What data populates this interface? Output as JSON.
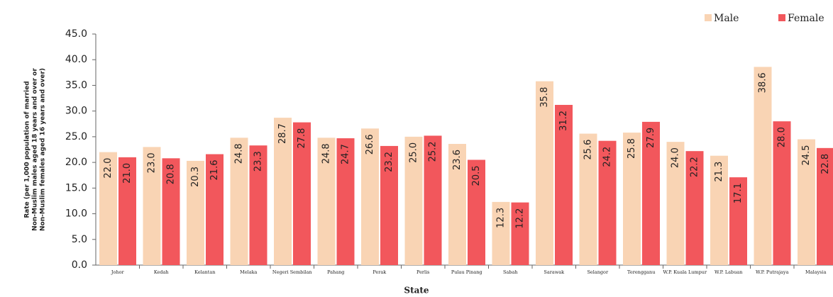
{
  "chart_data": {
    "type": "bar",
    "ylabel": [
      "Rate (per 1,000 population of married",
      "Non-Muslim  males aged 18 years and over or",
      "Non-Muslim  females aged 16 years and over)"
    ],
    "xlabel": "State",
    "categories": [
      "Johor",
      "Kedah",
      "Kelantan",
      "Melaka",
      "Negeri Sembilan",
      "Pahang",
      "Perak",
      "Perlis",
      "Pulau Pinang",
      "Sabah",
      "Sarawak",
      "Selangor",
      "Terengganu",
      "W.P. Kuala Lumpur",
      "W.P. Labuan",
      "W.P. Putrajaya",
      "Malaysia"
    ],
    "series": [
      {
        "name": "Male",
        "color": "#f9d4b4",
        "values": [
          22.0,
          23.0,
          20.3,
          24.8,
          28.7,
          24.8,
          26.6,
          25.0,
          23.6,
          12.3,
          35.8,
          25.6,
          25.8,
          24.0,
          21.3,
          38.6,
          24.5
        ],
        "value_labels": [
          "22.0",
          "23.0",
          "20.3",
          "24.8",
          "28.7",
          "24.8",
          "26.6",
          "25.0",
          "23.6",
          "12.3",
          "35.8",
          "25.6",
          "25.8",
          "24.0",
          "21.3",
          "38.6",
          "24.5"
        ]
      },
      {
        "name": "Female",
        "color": "#f2575c",
        "values": [
          21.0,
          20.8,
          21.6,
          23.3,
          27.8,
          24.7,
          23.2,
          25.2,
          20.5,
          12.2,
          31.2,
          24.2,
          27.9,
          22.2,
          17.1,
          28.0,
          22.8
        ],
        "value_labels": [
          "21.0",
          "20.8",
          "21.6",
          "23.3",
          "27.8",
          "24.7",
          "23.2",
          "25.2",
          "20.5",
          "12.2",
          "31.2",
          "24.2",
          "27.9",
          "22.2",
          "17.1",
          "28.0",
          "22.8"
        ]
      }
    ],
    "ylim": [
      0,
      45
    ],
    "yticks": [
      {
        "value": 0,
        "label": "0.0"
      },
      {
        "value": 5,
        "label": "5.0"
      },
      {
        "value": 10,
        "label": "10.0"
      },
      {
        "value": 15,
        "label": "15.0"
      },
      {
        "value": 20,
        "label": "20.0"
      },
      {
        "value": 25,
        "label": "25.0"
      },
      {
        "value": 30,
        "label": "30.0"
      },
      {
        "value": 35,
        "label": "35.0"
      },
      {
        "value": 40,
        "label": "40.0"
      },
      {
        "value": 45,
        "label": "45.0"
      }
    ],
    "grid": false
  }
}
